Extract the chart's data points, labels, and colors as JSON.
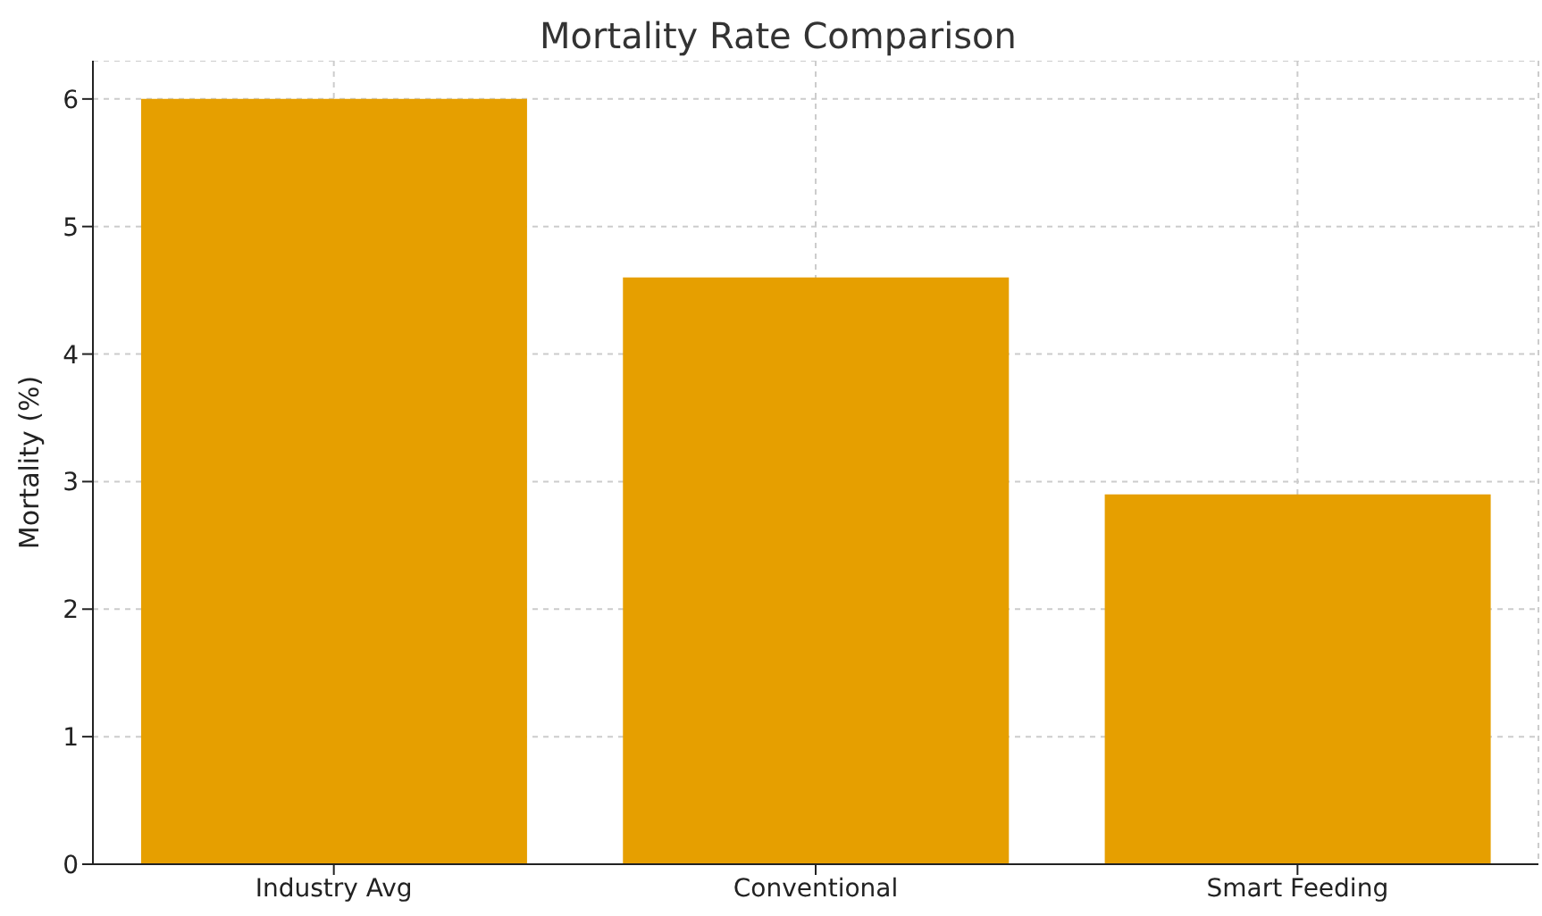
{
  "chart_data": {
    "type": "bar",
    "title": "Mortality Rate Comparison",
    "ylabel": "Mortality (%)",
    "categories": [
      "Industry Avg",
      "Conventional",
      "Smart Feeding"
    ],
    "values": [
      6.0,
      4.6,
      2.9
    ],
    "color": "#e69f00",
    "ylim": [
      0,
      6.3
    ],
    "yticks": [
      0,
      1,
      2,
      3,
      4,
      5,
      6
    ],
    "grid": true
  }
}
